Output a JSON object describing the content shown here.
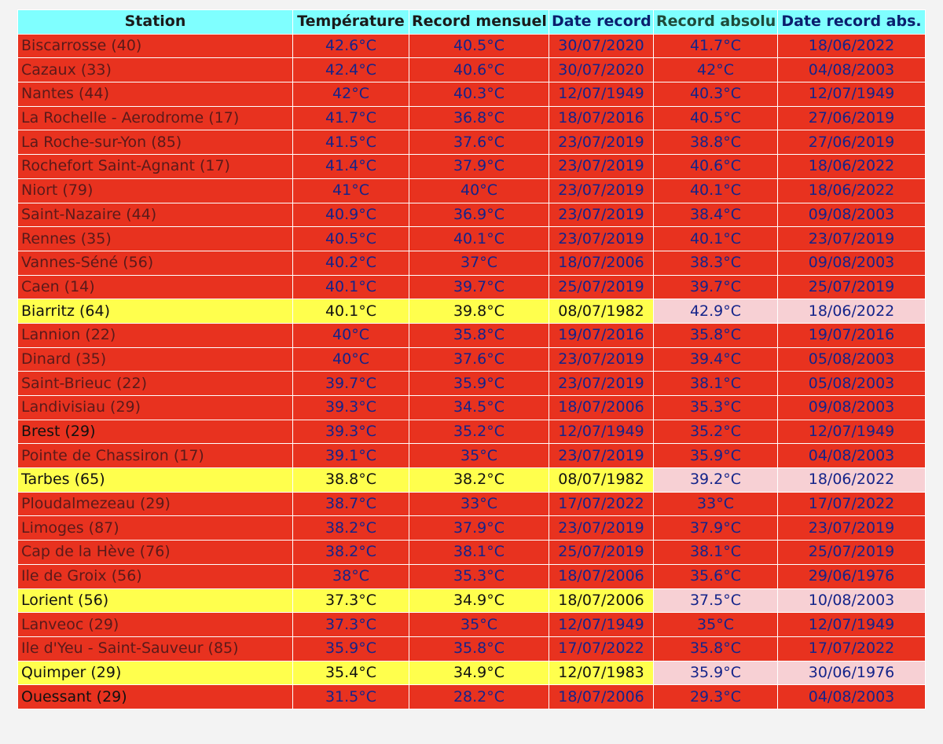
{
  "table": {
    "headers": {
      "station": "Station",
      "temperature": "Température",
      "record_mensuel": "Record mensuel",
      "date_record": "Date record",
      "record_absolu": "Record absolu",
      "date_record_abs": "Date record abs."
    },
    "rows": [
      {
        "station": "Biscarrosse (40)",
        "temp": "42.6°C",
        "rec_m": "40.5°C",
        "date_m": "30/07/2020",
        "rec_a": "41.7°C",
        "date_a": "18/06/2022",
        "style": "hot"
      },
      {
        "station": "Cazaux (33)",
        "temp": "42.4°C",
        "rec_m": "40.6°C",
        "date_m": "30/07/2020",
        "rec_a": "42°C",
        "date_a": "04/08/2003",
        "style": "hot"
      },
      {
        "station": "Nantes (44)",
        "temp": "42°C",
        "rec_m": "40.3°C",
        "date_m": "12/07/1949",
        "rec_a": "40.3°C",
        "date_a": "12/07/1949",
        "style": "hot"
      },
      {
        "station": "La Rochelle - Aerodrome (17)",
        "temp": "41.7°C",
        "rec_m": "36.8°C",
        "date_m": "18/07/2016",
        "rec_a": "40.5°C",
        "date_a": "27/06/2019",
        "style": "hot"
      },
      {
        "station": "La Roche-sur-Yon (85)",
        "temp": "41.5°C",
        "rec_m": "37.6°C",
        "date_m": "23/07/2019",
        "rec_a": "38.8°C",
        "date_a": "27/06/2019",
        "style": "hot"
      },
      {
        "station": "Rochefort Saint-Agnant (17)",
        "temp": "41.4°C",
        "rec_m": "37.9°C",
        "date_m": "23/07/2019",
        "rec_a": "40.6°C",
        "date_a": "18/06/2022",
        "style": "hot"
      },
      {
        "station": "Niort (79)",
        "temp": "41°C",
        "rec_m": "40°C",
        "date_m": "23/07/2019",
        "rec_a": "40.1°C",
        "date_a": "18/06/2022",
        "style": "hot"
      },
      {
        "station": "Saint-Nazaire (44)",
        "temp": "40.9°C",
        "rec_m": "36.9°C",
        "date_m": "23/07/2019",
        "rec_a": "38.4°C",
        "date_a": "09/08/2003",
        "style": "hot"
      },
      {
        "station": "Rennes (35)",
        "temp": "40.5°C",
        "rec_m": "40.1°C",
        "date_m": "23/07/2019",
        "rec_a": "40.1°C",
        "date_a": "23/07/2019",
        "style": "hot"
      },
      {
        "station": "Vannes-Séné (56)",
        "temp": "40.2°C",
        "rec_m": "37°C",
        "date_m": "18/07/2006",
        "rec_a": "38.3°C",
        "date_a": "09/08/2003",
        "style": "hot"
      },
      {
        "station": "Caen (14)",
        "temp": "40.1°C",
        "rec_m": "39.7°C",
        "date_m": "25/07/2019",
        "rec_a": "39.7°C",
        "date_a": "25/07/2019",
        "style": "hot"
      },
      {
        "station": "Biarritz (64)",
        "temp": "40.1°C",
        "rec_m": "39.8°C",
        "date_m": "08/07/1982",
        "rec_a": "42.9°C",
        "date_a": "18/06/2022",
        "style": "warm"
      },
      {
        "station": "Lannion (22)",
        "temp": "40°C",
        "rec_m": "35.8°C",
        "date_m": "19/07/2016",
        "rec_a": "35.8°C",
        "date_a": "19/07/2016",
        "style": "hot"
      },
      {
        "station": "Dinard (35)",
        "temp": "40°C",
        "rec_m": "37.6°C",
        "date_m": "23/07/2019",
        "rec_a": "39.4°C",
        "date_a": "05/08/2003",
        "style": "hot"
      },
      {
        "station": "Saint-Brieuc (22)",
        "temp": "39.7°C",
        "rec_m": "35.9°C",
        "date_m": "23/07/2019",
        "rec_a": "38.1°C",
        "date_a": "05/08/2003",
        "style": "hot"
      },
      {
        "station": "Landivisiau (29)",
        "temp": "39.3°C",
        "rec_m": "34.5°C",
        "date_m": "18/07/2006",
        "rec_a": "35.3°C",
        "date_a": "09/08/2003",
        "style": "hot"
      },
      {
        "station": "Brest (29)",
        "temp": "39.3°C",
        "rec_m": "35.2°C",
        "date_m": "12/07/1949",
        "rec_a": "35.2°C",
        "date_a": "12/07/1949",
        "style": "hot",
        "strong": true
      },
      {
        "station": "Pointe de Chassiron (17)",
        "temp": "39.1°C",
        "rec_m": "35°C",
        "date_m": "23/07/2019",
        "rec_a": "35.9°C",
        "date_a": "04/08/2003",
        "style": "hot"
      },
      {
        "station": "Tarbes (65)",
        "temp": "38.8°C",
        "rec_m": "38.2°C",
        "date_m": "08/07/1982",
        "rec_a": "39.2°C",
        "date_a": "18/06/2022",
        "style": "warm"
      },
      {
        "station": "Ploudalmezeau (29)",
        "temp": "38.7°C",
        "rec_m": "33°C",
        "date_m": "17/07/2022",
        "rec_a": "33°C",
        "date_a": "17/07/2022",
        "style": "hot"
      },
      {
        "station": "Limoges (87)",
        "temp": "38.2°C",
        "rec_m": "37.9°C",
        "date_m": "23/07/2019",
        "rec_a": "37.9°C",
        "date_a": "23/07/2019",
        "style": "hot"
      },
      {
        "station": "Cap de la Hève (76)",
        "temp": "38.2°C",
        "rec_m": "38.1°C",
        "date_m": "25/07/2019",
        "rec_a": "38.1°C",
        "date_a": "25/07/2019",
        "style": "hot"
      },
      {
        "station": "Ile de Groix (56)",
        "temp": "38°C",
        "rec_m": "35.3°C",
        "date_m": "18/07/2006",
        "rec_a": "35.6°C",
        "date_a": "29/06/1976",
        "style": "hot"
      },
      {
        "station": "Lorient (56)",
        "temp": "37.3°C",
        "rec_m": "34.9°C",
        "date_m": "18/07/2006",
        "rec_a": "37.5°C",
        "date_a": "10/08/2003",
        "style": "warm"
      },
      {
        "station": "Lanveoc (29)",
        "temp": "37.3°C",
        "rec_m": "35°C",
        "date_m": "12/07/1949",
        "rec_a": "35°C",
        "date_a": "12/07/1949",
        "style": "hot"
      },
      {
        "station": "Ile d'Yeu - Saint-Sauveur (85)",
        "temp": "35.9°C",
        "rec_m": "35.8°C",
        "date_m": "17/07/2022",
        "rec_a": "35.8°C",
        "date_a": "17/07/2022",
        "style": "hot"
      },
      {
        "station": "Quimper (29)",
        "temp": "35.4°C",
        "rec_m": "34.9°C",
        "date_m": "12/07/1983",
        "rec_a": "35.9°C",
        "date_a": "30/06/1976",
        "style": "warm",
        "strong": true
      },
      {
        "station": "Ouessant (29)",
        "temp": "31.5°C",
        "rec_m": "28.2°C",
        "date_m": "18/07/2006",
        "rec_a": "29.3°C",
        "date_a": "04/08/2003",
        "style": "hot",
        "strong": true
      }
    ]
  }
}
